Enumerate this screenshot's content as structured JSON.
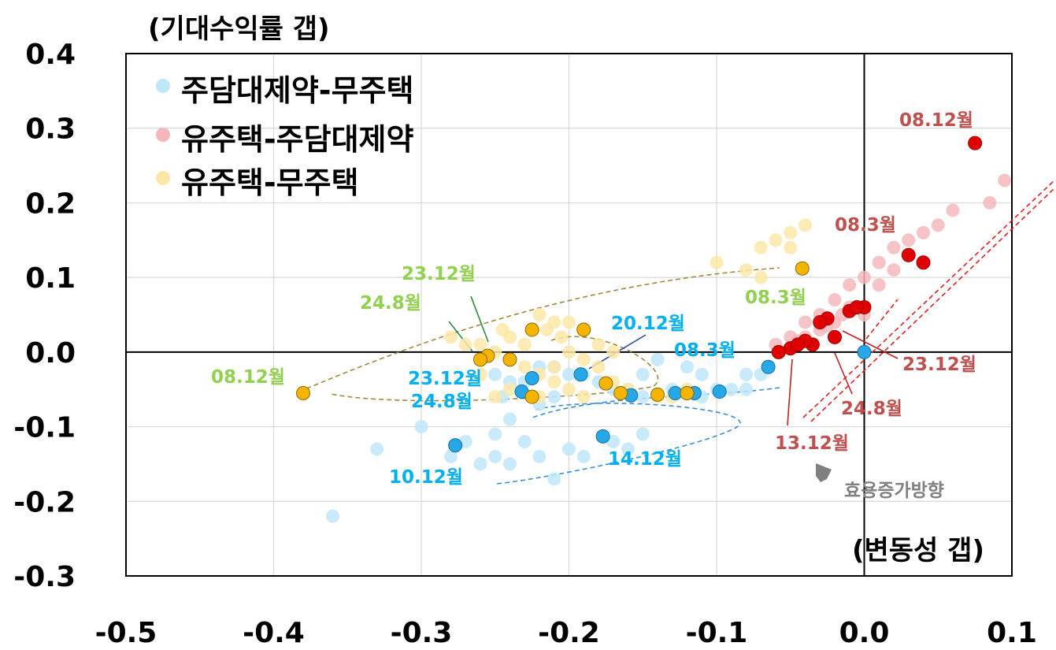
{
  "chart_data": {
    "type": "scatter",
    "ylabel": "(기대수익률 갭)",
    "xlabel": "(변동성 갭)",
    "xlim": [
      -0.5,
      0.1
    ],
    "ylim": [
      -0.3,
      0.4
    ],
    "x_ticks": [
      "-0.5",
      "-0.4",
      "-0.3",
      "-0.2",
      "-0.1",
      "0.0",
      "0.1"
    ],
    "y_ticks": [
      "0.4",
      "0.3",
      "0.2",
      "0.1",
      "0.0",
      "-0.1",
      "-0.2",
      "-0.3"
    ],
    "grid": true,
    "legend_position": "top-left",
    "series": [
      {
        "name": "주담대제약-무주택",
        "color": "#27a8e6",
        "light_color": "#bfe6f9",
        "points": [
          [
            -0.36,
            -0.22
          ],
          [
            -0.33,
            -0.13
          ],
          [
            -0.3,
            -0.1
          ],
          [
            -0.28,
            -0.14
          ],
          [
            -0.27,
            -0.12
          ],
          [
            -0.26,
            -0.15
          ],
          [
            -0.25,
            -0.14
          ],
          [
            -0.24,
            -0.09
          ],
          [
            -0.245,
            -0.06
          ],
          [
            -0.23,
            -0.04
          ],
          [
            -0.22,
            -0.02
          ],
          [
            -0.21,
            -0.02
          ],
          [
            -0.2,
            -0.03
          ],
          [
            -0.21,
            -0.06
          ],
          [
            -0.22,
            -0.07
          ],
          [
            -0.24,
            -0.04
          ],
          [
            -0.25,
            -0.03
          ],
          [
            -0.19,
            -0.03
          ],
          [
            -0.18,
            -0.04
          ],
          [
            -0.17,
            -0.05
          ],
          [
            -0.16,
            -0.05
          ],
          [
            -0.15,
            -0.06
          ],
          [
            -0.14,
            -0.06
          ],
          [
            -0.13,
            -0.05
          ],
          [
            -0.12,
            -0.05
          ],
          [
            -0.11,
            -0.06
          ],
          [
            -0.1,
            -0.05
          ],
          [
            -0.09,
            -0.05
          ],
          [
            -0.08,
            -0.05
          ],
          [
            -0.07,
            -0.03
          ],
          [
            -0.08,
            -0.03
          ],
          [
            -0.15,
            -0.03
          ],
          [
            -0.14,
            -0.01
          ],
          [
            -0.12,
            -0.02
          ],
          [
            -0.11,
            -0.03
          ],
          [
            -0.2,
            -0.13
          ],
          [
            -0.21,
            -0.17
          ],
          [
            -0.22,
            -0.14
          ],
          [
            -0.24,
            -0.15
          ],
          [
            -0.19,
            -0.14
          ],
          [
            -0.17,
            -0.12
          ],
          [
            -0.16,
            -0.13
          ],
          [
            -0.15,
            -0.11
          ],
          [
            -0.23,
            -0.12
          ],
          [
            -0.25,
            -0.11
          ]
        ],
        "highlighted": [
          {
            "x": -0.065,
            "y": -0.02,
            "label": "08.3월"
          },
          {
            "x": -0.277,
            "y": -0.125,
            "label": "10.12월"
          },
          {
            "x": -0.177,
            "y": -0.113,
            "label": "14.12월"
          },
          {
            "x": -0.192,
            "y": -0.03,
            "label": "20.12월"
          },
          {
            "x": -0.232,
            "y": -0.053,
            "label": "23.12월"
          },
          {
            "x": -0.225,
            "y": -0.035,
            "label": "24.8월"
          },
          {
            "x": 0.0,
            "y": 0.0
          },
          {
            "x": -0.158,
            "y": -0.058
          },
          {
            "x": -0.128,
            "y": -0.055
          },
          {
            "x": -0.115,
            "y": -0.055
          },
          {
            "x": -0.098,
            "y": -0.053
          }
        ]
      },
      {
        "name": "유주택-주담대제약",
        "color": "#e00000",
        "light_color": "#f4b8bc",
        "points": [
          [
            0.095,
            0.23
          ],
          [
            0.085,
            0.2
          ],
          [
            0.06,
            0.19
          ],
          [
            0.05,
            0.17
          ],
          [
            0.04,
            0.16
          ],
          [
            0.03,
            0.15
          ],
          [
            0.02,
            0.14
          ],
          [
            0.01,
            0.12
          ],
          [
            0.02,
            0.11
          ],
          [
            0.03,
            0.13
          ],
          [
            0.0,
            0.1
          ],
          [
            -0.01,
            0.09
          ],
          [
            -0.02,
            0.07
          ],
          [
            -0.03,
            0.05
          ],
          [
            -0.04,
            0.04
          ],
          [
            -0.05,
            0.02
          ],
          [
            -0.06,
            0.01
          ],
          [
            0.0,
            0.05
          ],
          [
            -0.01,
            0.06
          ],
          [
            -0.02,
            0.04
          ],
          [
            -0.03,
            0.03
          ],
          [
            -0.04,
            0.02
          ],
          [
            0.01,
            0.09
          ],
          [
            -0.015,
            0.05
          ],
          [
            -0.025,
            0.035
          ],
          [
            -0.045,
            0.015
          ]
        ],
        "highlighted": [
          {
            "x": 0.075,
            "y": 0.28,
            "label": "08.12월"
          },
          {
            "x": 0.03,
            "y": 0.13,
            "label": "08.3월"
          },
          {
            "x": 0.04,
            "y": 0.12
          },
          {
            "x": -0.05,
            "y": 0.005,
            "label": "13.12월"
          },
          {
            "x": -0.035,
            "y": 0.01
          },
          {
            "x": -0.02,
            "y": 0.02
          },
          {
            "x": -0.025,
            "y": 0.045
          },
          {
            "x": -0.03,
            "y": 0.04,
            "label": "24.8월"
          },
          {
            "x": -0.01,
            "y": 0.055
          },
          {
            "x": 0.0,
            "y": 0.06
          },
          {
            "x": -0.005,
            "y": 0.06
          },
          {
            "x": -0.04,
            "y": 0.015
          },
          {
            "x": -0.058,
            "y": 0.0
          },
          {
            "x": -0.045,
            "y": 0.01
          }
        ]
      },
      {
        "name": "유주택-무주택",
        "color": "#f5b400",
        "light_color": "#fde7a8",
        "points": [
          [
            -0.04,
            0.17
          ],
          [
            -0.05,
            0.16
          ],
          [
            -0.06,
            0.15
          ],
          [
            -0.07,
            0.14
          ],
          [
            -0.05,
            0.14
          ],
          [
            -0.1,
            0.12
          ],
          [
            -0.08,
            0.11
          ],
          [
            -0.07,
            0.1
          ],
          [
            -0.22,
            0.05
          ],
          [
            -0.21,
            0.04
          ],
          [
            -0.2,
            0.04
          ],
          [
            -0.19,
            0.03
          ],
          [
            -0.18,
            0.01
          ],
          [
            -0.17,
            0.0
          ],
          [
            -0.18,
            -0.02
          ],
          [
            -0.19,
            -0.01
          ],
          [
            -0.2,
            0.0
          ],
          [
            -0.21,
            -0.02
          ],
          [
            -0.22,
            -0.03
          ],
          [
            -0.23,
            -0.02
          ],
          [
            -0.24,
            -0.01
          ],
          [
            -0.25,
            0.0
          ],
          [
            -0.26,
            0.01
          ],
          [
            -0.27,
            0.01
          ],
          [
            -0.28,
            0.02
          ],
          [
            -0.26,
            -0.03
          ],
          [
            -0.24,
            0.02
          ],
          [
            -0.23,
            0.01
          ],
          [
            -0.17,
            -0.04
          ],
          [
            -0.16,
            -0.05
          ],
          [
            -0.14,
            -0.06
          ],
          [
            -0.13,
            -0.06
          ],
          [
            -0.12,
            -0.05
          ],
          [
            -0.21,
            -0.04
          ],
          [
            -0.2,
            -0.05
          ],
          [
            -0.19,
            -0.06
          ],
          [
            -0.24,
            -0.05
          ],
          [
            -0.25,
            -0.06
          ],
          [
            -0.22,
            -0.06
          ],
          [
            -0.215,
            0.03
          ],
          [
            -0.205,
            0.02
          ],
          [
            -0.245,
            0.03
          ]
        ],
        "highlighted": [
          {
            "x": -0.38,
            "y": -0.055,
            "label": "08.12월"
          },
          {
            "x": -0.042,
            "y": 0.112,
            "label": "08.3월"
          },
          {
            "x": -0.255,
            "y": -0.005,
            "label": "23.12월"
          },
          {
            "x": -0.26,
            "y": -0.01,
            "label": "24.8월"
          },
          {
            "x": -0.225,
            "y": 0.03
          },
          {
            "x": -0.19,
            "y": 0.03
          },
          {
            "x": -0.175,
            "y": -0.042
          },
          {
            "x": -0.165,
            "y": -0.055
          },
          {
            "x": -0.14,
            "y": -0.057
          },
          {
            "x": -0.12,
            "y": -0.055
          },
          {
            "x": -0.225,
            "y": -0.06
          },
          {
            "x": -0.24,
            "y": -0.01
          }
        ]
      }
    ],
    "annotations": [
      {
        "text": "08.12월",
        "series": 2
      },
      {
        "text": "24.8월",
        "series": 2
      },
      {
        "text": "23.12월",
        "series": 2
      },
      {
        "text": "08.3월",
        "series": 2
      },
      {
        "text": "20.12월",
        "series": 0
      },
      {
        "text": "08.3월",
        "series": 0
      },
      {
        "text": "23.12월",
        "series": 0
      },
      {
        "text": "24.8월",
        "series": 0
      },
      {
        "text": "10.12월",
        "series": 0
      },
      {
        "text": "14.12월",
        "series": 0
      },
      {
        "text": "08.12월",
        "series": 1
      },
      {
        "text": "08.3월",
        "series": 1
      },
      {
        "text": "23.12월",
        "series": 1
      },
      {
        "text": "24.8월",
        "series": 1
      },
      {
        "text": "13.12월",
        "series": 1
      },
      {
        "text": "효용증가방향",
        "series": null
      }
    ],
    "annotation_colors": [
      "#00b0f0",
      "#c0504d",
      "#92d050",
      "#808080"
    ]
  }
}
